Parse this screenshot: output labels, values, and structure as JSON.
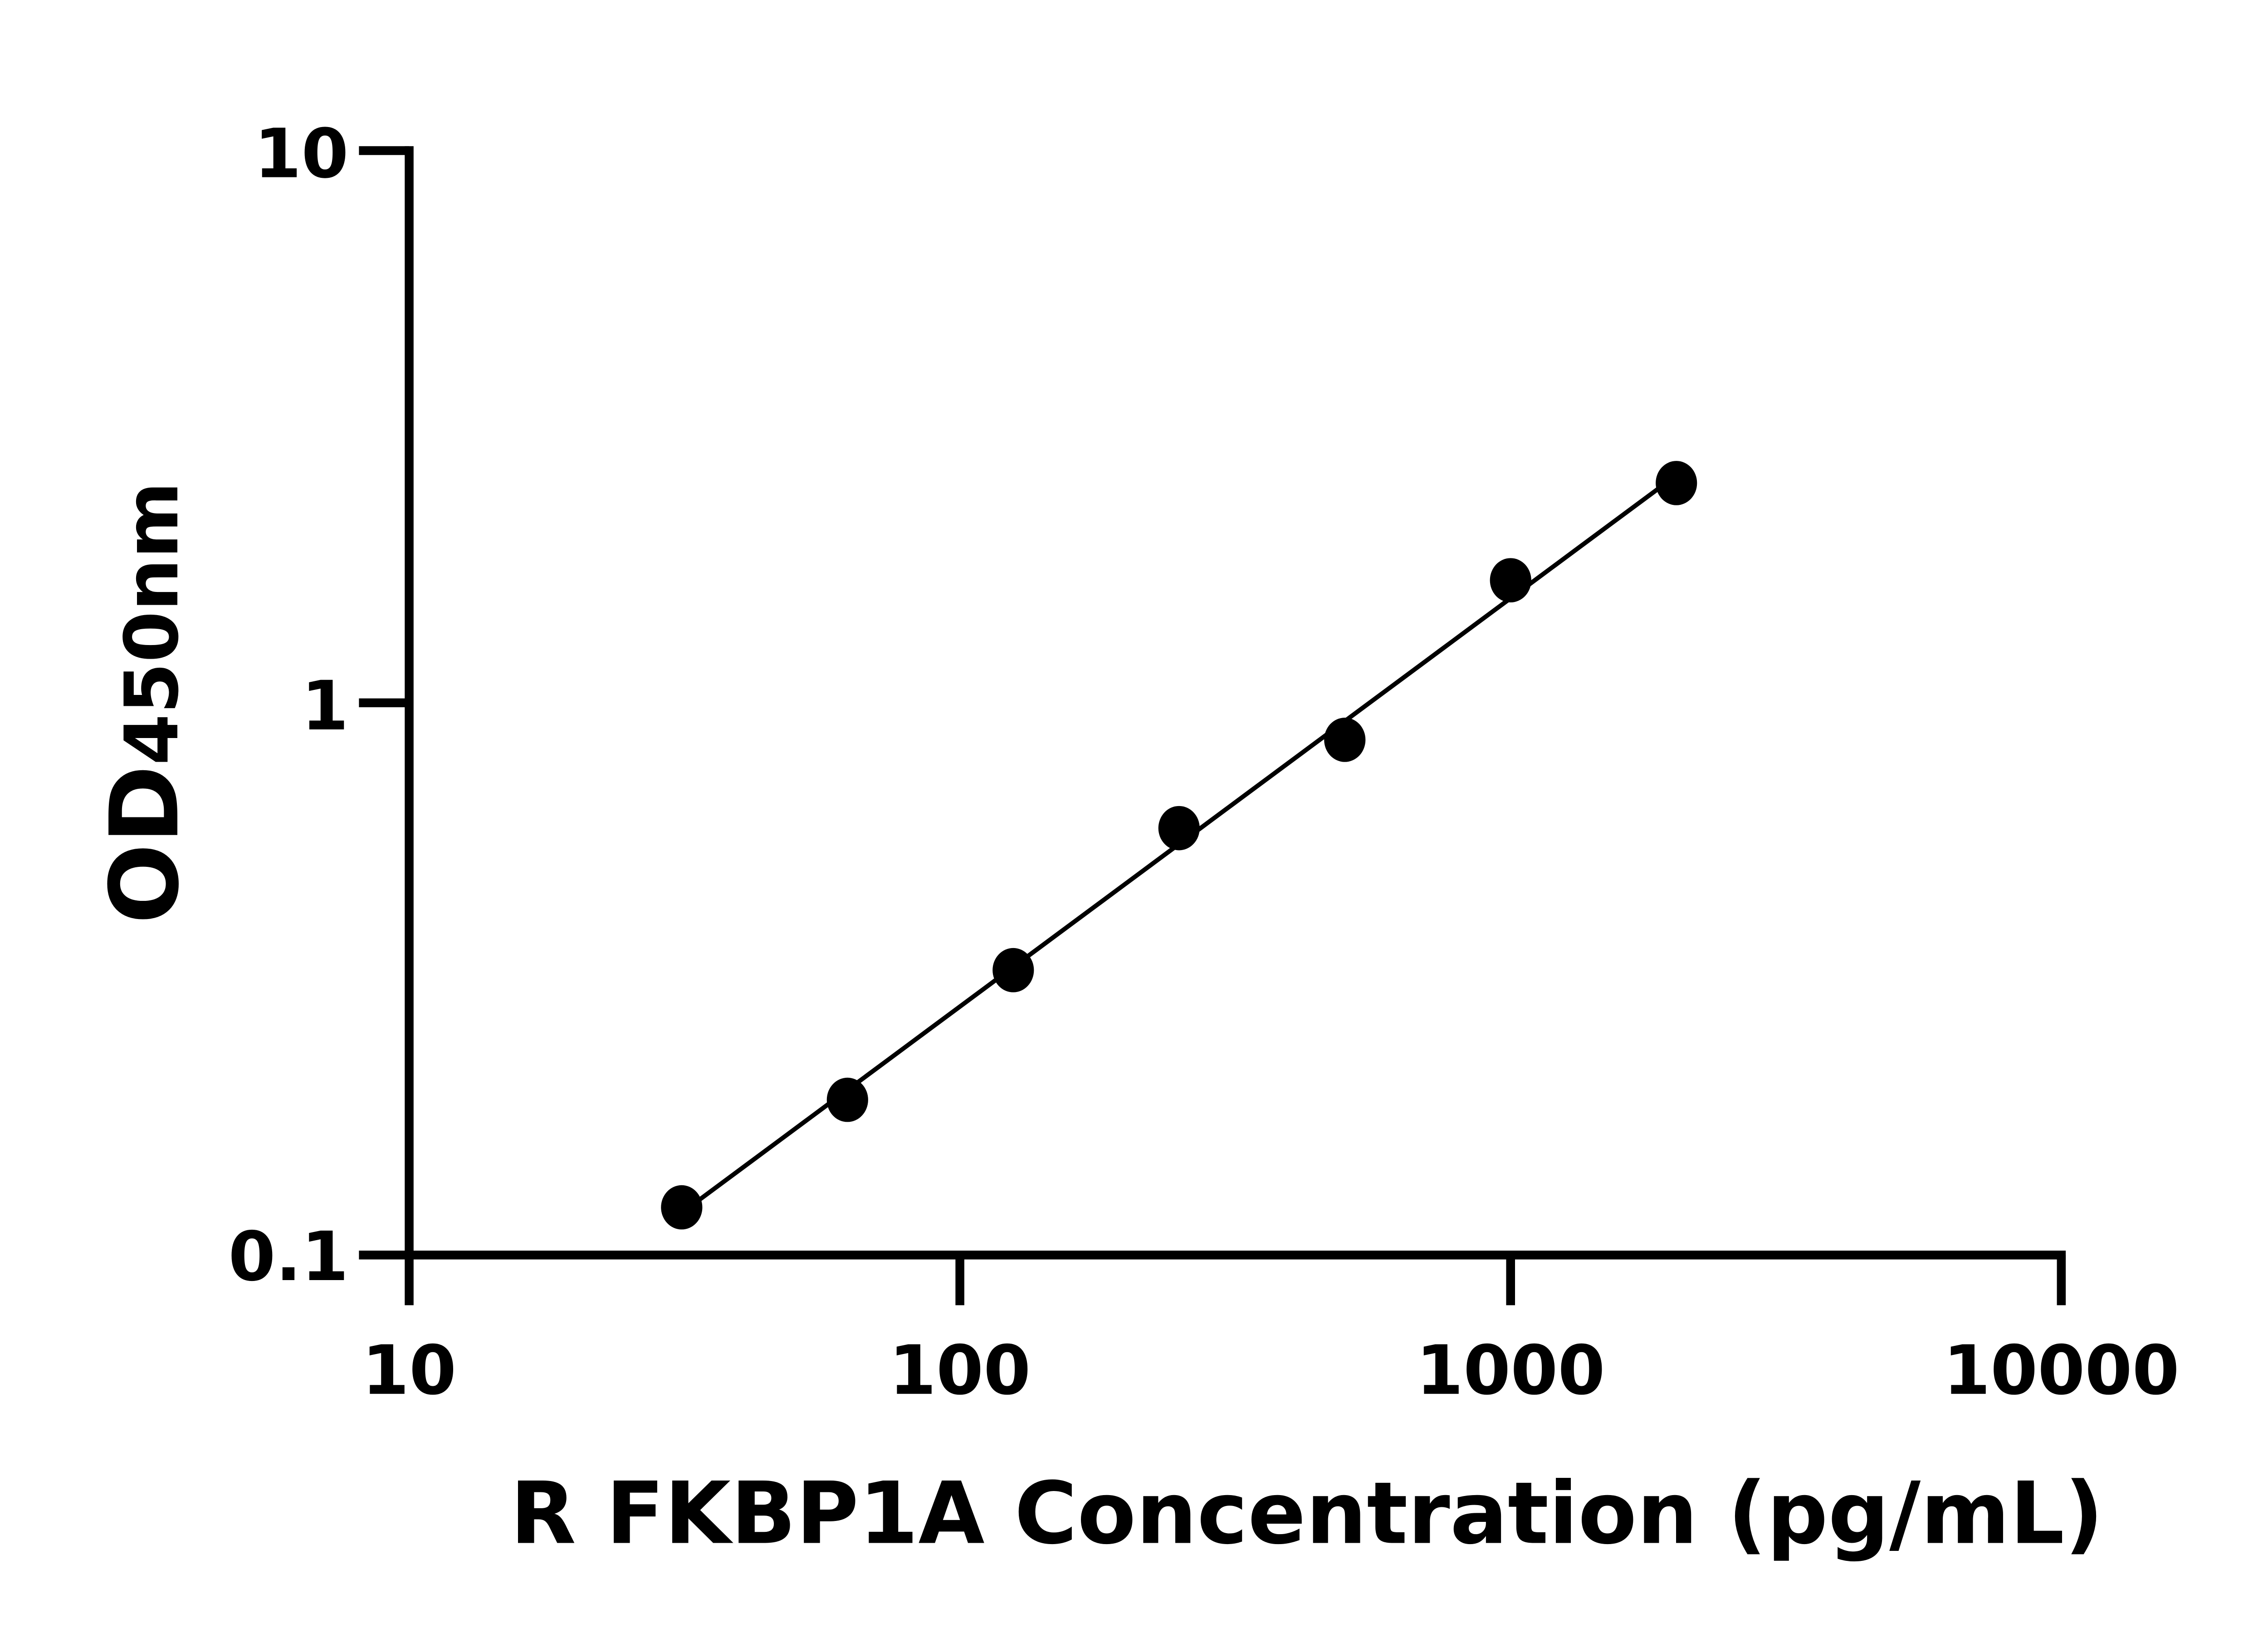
{
  "chart_data": {
    "type": "scatter",
    "title": "",
    "xlabel": "R FKBP1A Concentration (pg/mL)",
    "ylabel_main": "OD",
    "ylabel_sub": "450nm",
    "x_scale": "log",
    "y_scale": "log",
    "xlim": [
      10,
      10000
    ],
    "ylim": [
      0.1,
      10
    ],
    "x_ticks": [
      10,
      100,
      1000,
      10000
    ],
    "x_tick_labels": [
      "10",
      "100",
      "1000",
      "10000"
    ],
    "y_ticks": [
      0.1,
      1,
      10
    ],
    "y_tick_labels": [
      "0.1",
      "1",
      "10"
    ],
    "grid": false,
    "legend": "none",
    "fit_line": "log-log fit through points",
    "series": [
      {
        "x": [
          31.25,
          62.5,
          125,
          250,
          500,
          1000,
          2000
        ],
        "y": [
          0.122,
          0.191,
          0.328,
          0.593,
          0.857,
          1.667,
          2.5
        ],
        "color": "#000000",
        "marker": "filled-circle"
      }
    ]
  }
}
